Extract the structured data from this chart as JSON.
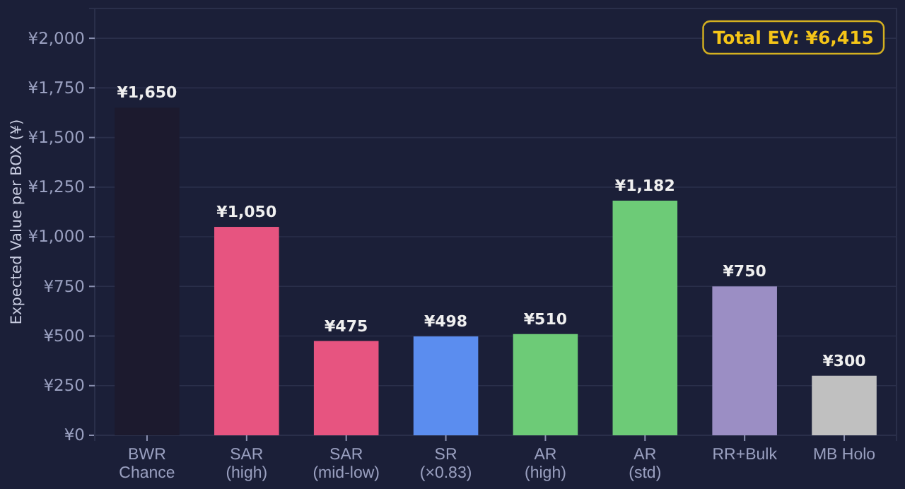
{
  "chart_data": {
    "type": "bar",
    "ylabel": "Expected Value per BOX (¥)",
    "categories": [
      "BWR\nChance",
      "SAR\n(high)",
      "SAR\n(mid-low)",
      "SR\n(×0.83)",
      "AR\n(high)",
      "AR\n(std)",
      "RR+Bulk",
      "MB Holo"
    ],
    "values": [
      1650,
      1050,
      475,
      498,
      510,
      1182,
      750,
      300
    ],
    "colors": [
      "#1c1a2e",
      "#e75480",
      "#e75480",
      "#5b8def",
      "#6dcb77",
      "#6dcb77",
      "#9b8ec4",
      "#c0c0c0"
    ],
    "value_labels": [
      "¥1,650",
      "¥1,050",
      "¥475",
      "¥498",
      "¥510",
      "¥1,182",
      "¥750",
      "¥300"
    ],
    "ylim": [
      0,
      2150
    ],
    "yticks": [
      {
        "value": 0,
        "label": "¥0"
      },
      {
        "value": 250,
        "label": "¥250"
      },
      {
        "value": 500,
        "label": "¥500"
      },
      {
        "value": 750,
        "label": "¥750"
      },
      {
        "value": 1000,
        "label": "¥1,000"
      },
      {
        "value": 1250,
        "label": "¥1,250"
      },
      {
        "value": 1500,
        "label": "¥1,500"
      },
      {
        "value": 1750,
        "label": "¥1,750"
      },
      {
        "value": 2000,
        "label": "¥2,000"
      }
    ],
    "grid": "y",
    "annotations": [
      "Total EV: ¥6,415"
    ]
  }
}
